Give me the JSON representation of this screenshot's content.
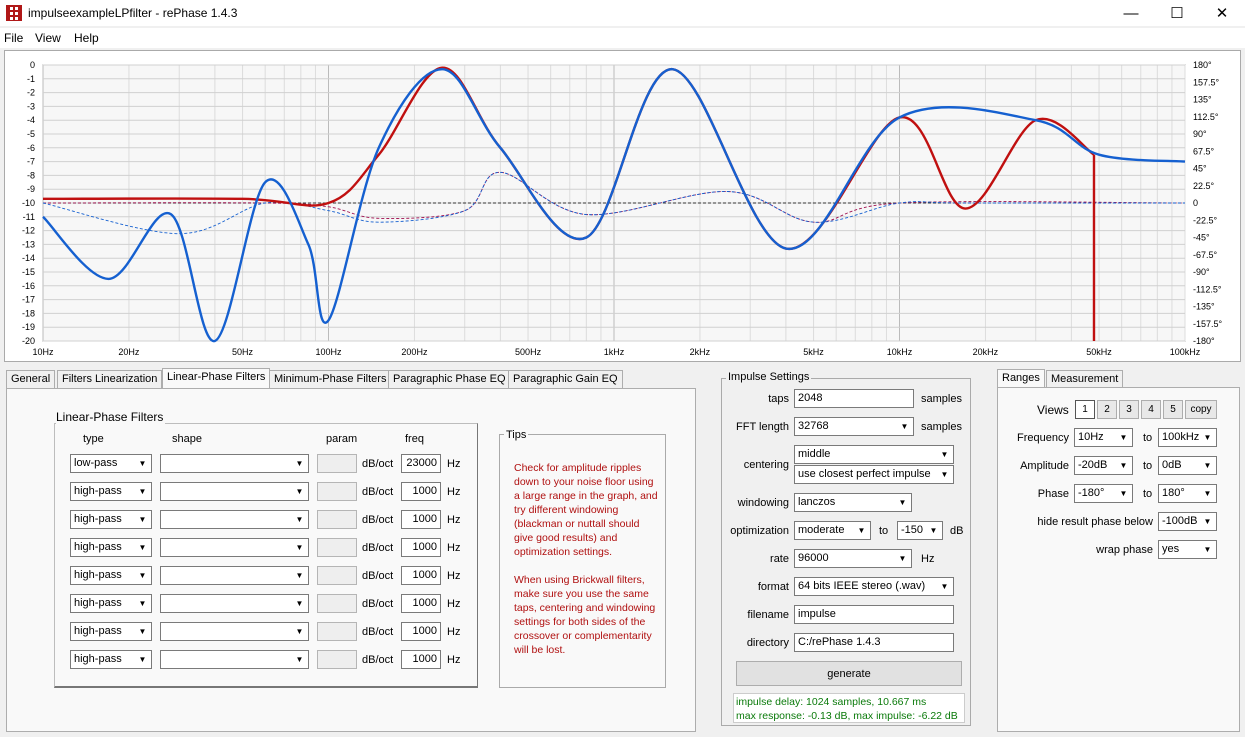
{
  "window": {
    "title": "impulseexampleLPfilter  -  rePhase 1.4.3",
    "minimize": "—",
    "maximize": "☐",
    "close": "✕"
  },
  "menu": [
    "File",
    "View",
    "Help"
  ],
  "graph": {
    "y_left_ticks": [
      "0",
      "-1",
      "-2",
      "-3",
      "-4",
      "-5",
      "-6",
      "-7",
      "-8",
      "-9",
      "-10",
      "-11",
      "-12",
      "-13",
      "-14",
      "-15",
      "-16",
      "-17",
      "-18",
      "-19",
      "-20"
    ],
    "y_right_ticks": [
      "180°",
      "157.5°",
      "135°",
      "112.5°",
      "90°",
      "67.5°",
      "45°",
      "22.5°",
      "0",
      "-22.5°",
      "-45°",
      "-67.5°",
      "-90°",
      "-112.5°",
      "-135°",
      "-157.5°",
      "-180°"
    ],
    "x_ticks": [
      "10Hz",
      "20Hz",
      "50Hz",
      "100Hz",
      "200Hz",
      "500Hz",
      "1kHz",
      "2kHz",
      "5kHz",
      "10kHz",
      "20kHz",
      "50kHz",
      "100kHz"
    ]
  },
  "chart_data": {
    "type": "line",
    "x_scale": "log",
    "xlim": [
      10,
      100000
    ],
    "ylim_left": [
      -20,
      0
    ],
    "ylim_right": [
      -180,
      180
    ],
    "grid": true,
    "series": [
      {
        "color": "#1560d0",
        "axis": "left",
        "x": [
          10,
          17,
          28,
          40,
          60,
          85,
          100,
          150,
          250,
          400,
          800,
          1600,
          4000,
          10000,
          30000,
          50000,
          100000
        ],
        "values": [
          -11,
          -15.5,
          -10.8,
          -20,
          -8.5,
          -13,
          -18.5,
          -6,
          -0.3,
          -6,
          -12.5,
          -0.3,
          -13.3,
          -3.8,
          -4,
          -6.5,
          -7
        ]
      },
      {
        "color": "#c01010",
        "axis": "left",
        "x": [
          10,
          50,
          100,
          150,
          250,
          400,
          800,
          1600,
          4000,
          10000,
          17000,
          30000,
          48000
        ],
        "values": [
          -9.7,
          -9.7,
          -10,
          -6.5,
          -0.2,
          -6,
          -12.5,
          -0.3,
          -13.3,
          -3.8,
          -10.4,
          -4,
          -6.5
        ]
      },
      {
        "color": "#1560d0",
        "axis": "right",
        "style": "dashed",
        "x": [
          10,
          30,
          60,
          100,
          150,
          300,
          400,
          800,
          2500,
          5000,
          10000,
          17000,
          100000
        ],
        "values": [
          0,
          -40,
          0,
          -10,
          -25,
          -10,
          40,
          -15,
          15,
          -25,
          0,
          0,
          0
        ]
      },
      {
        "color": "#a01050",
        "axis": "right",
        "style": "dashed",
        "x": [
          10,
          60,
          100,
          150,
          300,
          400,
          800,
          2500,
          5000,
          10000,
          100000
        ],
        "values": [
          0,
          0,
          -5,
          -20,
          -10,
          40,
          -15,
          15,
          -25,
          0,
          0
        ]
      }
    ]
  },
  "tabs": [
    "General",
    "Filters Linearization",
    "Linear-Phase Filters",
    "Minimum-Phase Filters",
    "Paragraphic Phase EQ",
    "Paragraphic Gain EQ"
  ],
  "linear_phase": {
    "title": "Linear-Phase Filters",
    "col_type": "type",
    "col_shape": "shape",
    "col_param": "param",
    "col_freq": "freq",
    "unit_slope": "dB/oct",
    "unit_hz": "Hz",
    "rows": [
      {
        "type": "low-pass",
        "shape": "",
        "param": "",
        "freq": "23000"
      },
      {
        "type": "high-pass",
        "shape": "",
        "param": "",
        "freq": "1000"
      },
      {
        "type": "high-pass",
        "shape": "",
        "param": "",
        "freq": "1000"
      },
      {
        "type": "high-pass",
        "shape": "",
        "param": "",
        "freq": "1000"
      },
      {
        "type": "high-pass",
        "shape": "",
        "param": "",
        "freq": "1000"
      },
      {
        "type": "high-pass",
        "shape": "",
        "param": "",
        "freq": "1000"
      },
      {
        "type": "high-pass",
        "shape": "",
        "param": "",
        "freq": "1000"
      },
      {
        "type": "high-pass",
        "shape": "",
        "param": "",
        "freq": "1000"
      }
    ]
  },
  "tips": {
    "title": "Tips",
    "text": "Check for amplitude ripples down to your noise floor using a large range in the graph, and try different windowing (blackman or nuttall should give good results) and optimization settings.\n\nWhen using Brickwall filters, make sure you use the same taps, centering and windowing settings for both sides of the crossover or complementarity will be lost."
  },
  "impulse": {
    "title": "Impulse Settings",
    "taps_label": "taps",
    "taps": "2048",
    "samples": "samples",
    "fft_label": "FFT length",
    "fft": "32768",
    "centering_label": "centering",
    "centering": "middle",
    "centering2": "use closest perfect impulse",
    "windowing_label": "windowing",
    "windowing": "lanczos",
    "optimization_label": "optimization",
    "optimization": "moderate",
    "to": "to",
    "opt_db": "-150",
    "db": "dB",
    "rate_label": "rate",
    "rate": "96000",
    "hz": "Hz",
    "format_label": "format",
    "format": "64 bits IEEE stereo (.wav)",
    "filename_label": "filename",
    "filename": "impulse",
    "directory_label": "directory",
    "directory": "C:/rePhase 1.4.3",
    "generate": "generate",
    "status1": "impulse delay: 1024 samples, 10.667 ms",
    "status2": "max response: -0.13 dB, max impulse: -6.22 dB"
  },
  "ranges": {
    "tabs": [
      "Ranges",
      "Measurement"
    ],
    "views_label": "Views",
    "views": [
      "1",
      "2",
      "3",
      "4",
      "5"
    ],
    "copy": "copy",
    "frequency_label": "Frequency",
    "freq_from": "10Hz",
    "freq_to": "100kHz",
    "amplitude_label": "Amplitude",
    "amp_from": "-20dB",
    "amp_to": "0dB",
    "phase_label": "Phase",
    "phase_from": "-180°",
    "phase_to": "180°",
    "hide_label": "hide result phase below",
    "hide_val": "-100dB",
    "wrap_label": "wrap phase",
    "wrap_val": "yes",
    "to": "to"
  }
}
